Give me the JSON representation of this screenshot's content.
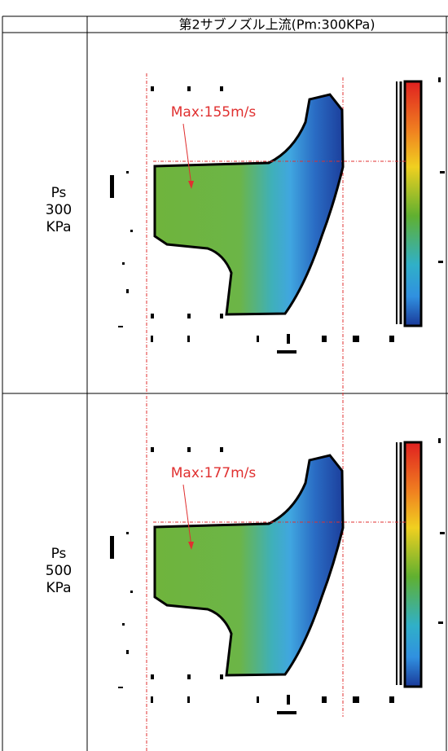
{
  "table": {
    "header": "第2サブノズル上流(Pm:300KPa)",
    "rows": [
      {
        "label_lines": [
          "Ps",
          "300",
          "KPa"
        ],
        "max_label": "Max:155m/s"
      },
      {
        "label_lines": [
          "Ps",
          "500",
          "KPa"
        ],
        "max_label": "Max:177m/s"
      }
    ]
  }
}
